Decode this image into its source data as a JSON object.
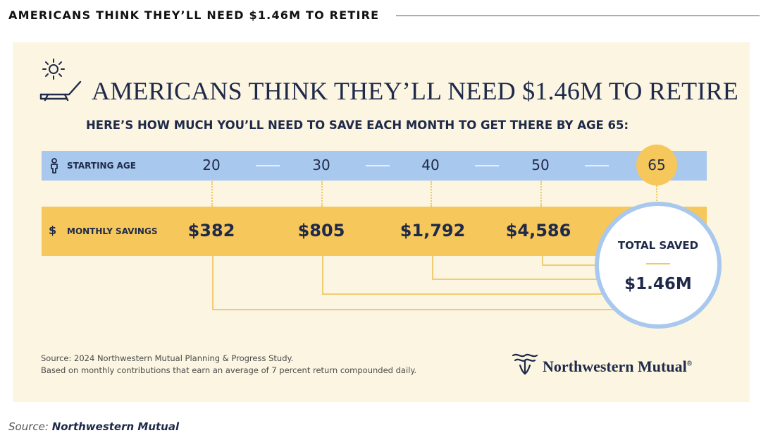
{
  "header": {
    "title": "AMERICANS THINK THEY’LL NEED $1.46M TO RETIRE"
  },
  "chart_data": {
    "type": "table",
    "title": "AMERICANS THINK THEY’LL NEED $1.46M TO RETIRE",
    "subtitle": "HERE’S HOW MUCH YOU’LL NEED TO SAVE EACH MONTH TO GET THERE BY AGE 65:",
    "row_labels": {
      "age": "STARTING AGE",
      "savings": "MONTHLY SAVINGS"
    },
    "ages": [
      "20",
      "30",
      "40",
      "50"
    ],
    "target_age": "65",
    "monthly_savings": [
      "$382",
      "$805",
      "$1,792",
      "$4,586"
    ],
    "monthly_savings_values": [
      382,
      805,
      1792,
      4586
    ],
    "total": {
      "label": "TOTAL SAVED",
      "value": "$1.46M"
    },
    "source_lines": [
      "Source: 2024 Northwestern Mutual Planning & Progress Study.",
      "Based on monthly contributions that earn an average of 7 percent return compounded daily."
    ],
    "logo_text": "Northwestern Mutual",
    "logo_mark": "®"
  },
  "footer": {
    "source_prefix": "Source:",
    "source_name": "Northwestern Mutual"
  },
  "colors": {
    "background": "#fbf5e1",
    "age_band": "#a9c8ee",
    "savings_band": "#f6c75a",
    "navy": "#1f2a4a",
    "ring": "#a9c8ee"
  },
  "icons": {
    "sun": "sun-icon",
    "lounge_chair": "lounge-chair-icon",
    "person": "person-icon",
    "dollar": "dollar-icon",
    "logo": "northwestern-mutual-logo-icon"
  }
}
